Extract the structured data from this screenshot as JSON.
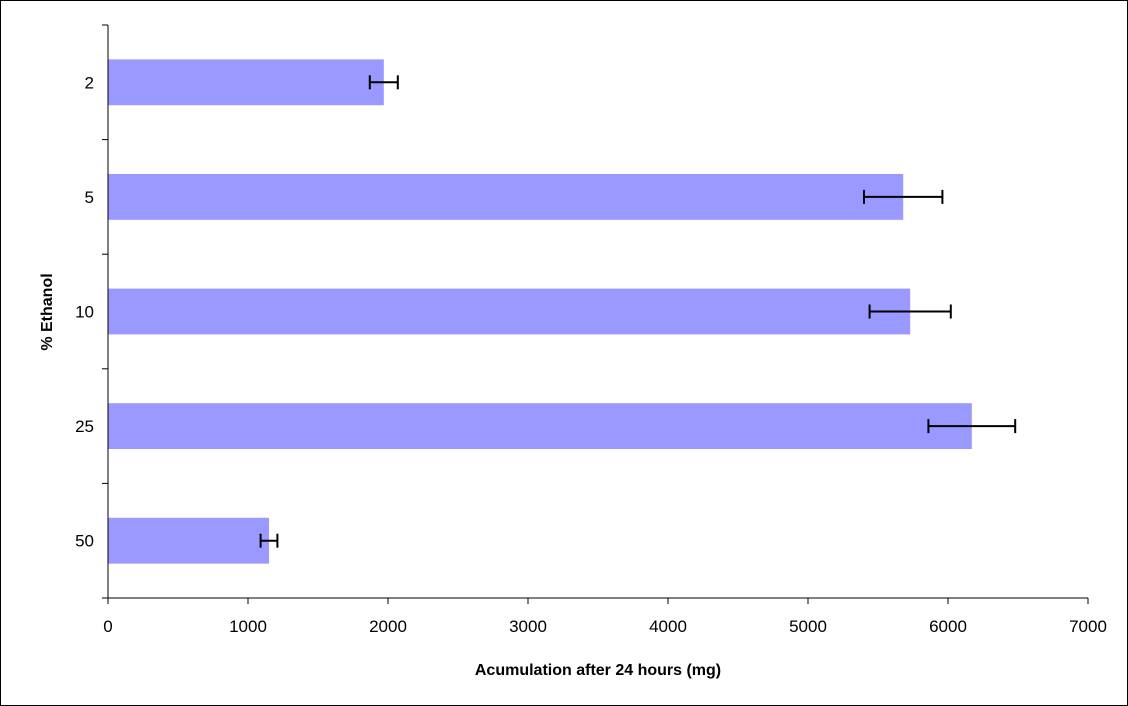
{
  "chart_data": {
    "type": "bar",
    "orientation": "horizontal",
    "title": "",
    "xlabel": "Acumulation after 24 hours (mg)",
    "ylabel": "% Ethanol",
    "categories": [
      "2",
      "5",
      "10",
      "25",
      "50"
    ],
    "values": [
      1970,
      5680,
      5730,
      6170,
      1150
    ],
    "error": [
      100,
      280,
      290,
      310,
      60
    ],
    "xlim": [
      0,
      7000
    ],
    "xticks": [
      0,
      1000,
      2000,
      3000,
      4000,
      5000,
      6000,
      7000
    ],
    "xtick_labels": [
      "0",
      "1000",
      "2000",
      "3000",
      "4000",
      "5000",
      "6000",
      "7000"
    ],
    "grid": false,
    "legend": "none",
    "colors": {
      "bar": "#9999ff",
      "error_bar": "#000000",
      "axis": "#000000",
      "frame": "#000000"
    }
  }
}
